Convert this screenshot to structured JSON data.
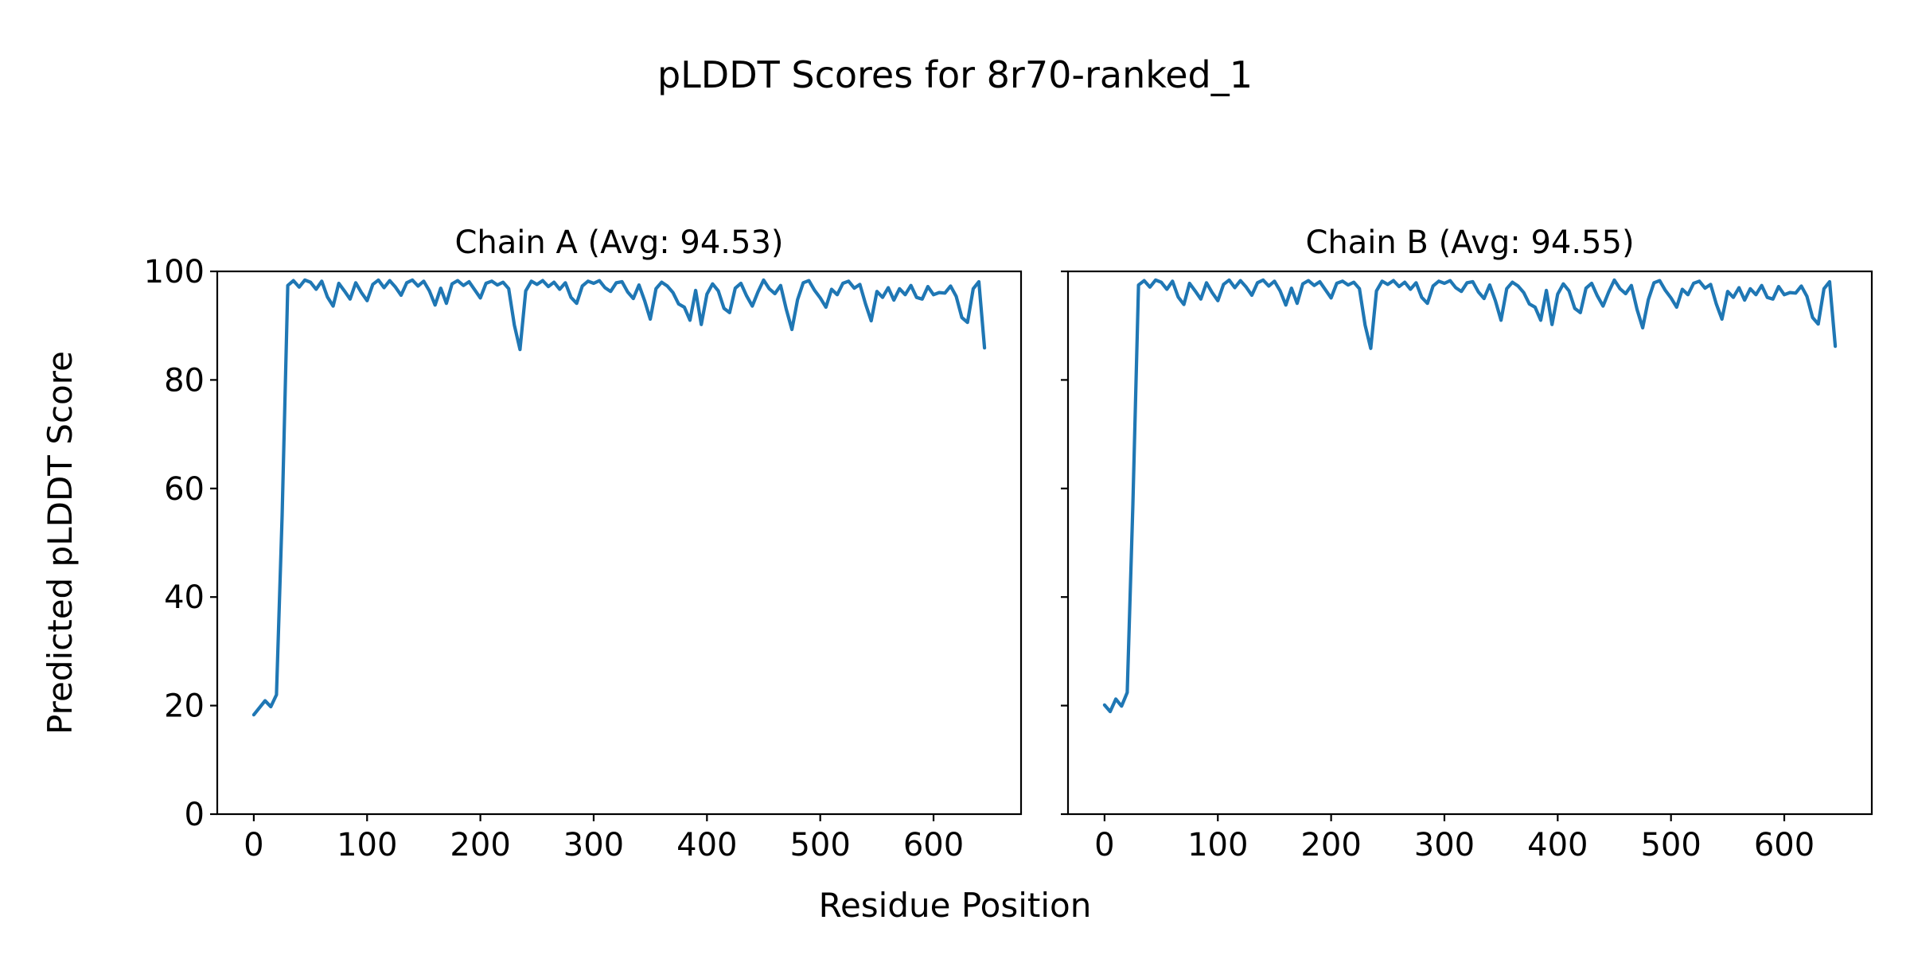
{
  "figure": {
    "title": "pLDDT Scores for 8r70-ranked_1",
    "xlabel": "Residue Position",
    "ylabel": "Predicted pLDDT Score",
    "background_color": "#ffffff",
    "text_color": "#000000",
    "line_color": "#1f77b4",
    "spine_color": "#000000"
  },
  "chart_data": [
    {
      "type": "line",
      "title": "Chain A (Avg: 94.53)",
      "avg_plddt": 94.53,
      "xlabel": "Residue Position",
      "ylabel": "Predicted pLDDT Score",
      "xticks": [
        0,
        100,
        200,
        300,
        400,
        500,
        600
      ],
      "yticks": [
        0,
        20,
        40,
        60,
        80,
        100
      ],
      "xlim": [
        -32.25,
        677.25
      ],
      "ylim": [
        0,
        100
      ],
      "grid": false,
      "legend": "none",
      "y_tick_labels_visible": true,
      "x_start": 0,
      "x_step": 5,
      "values": [
        18.3,
        19.6,
        20.9,
        19.8,
        22.0,
        55.0,
        97.4,
        98.3,
        97.1,
        98.4,
        98.0,
        96.7,
        98.2,
        95.3,
        93.6,
        97.8,
        96.4,
        94.9,
        97.9,
        96.1,
        94.6,
        97.6,
        98.4,
        97.0,
        98.3,
        97.1,
        95.6,
        97.9,
        98.4,
        97.3,
        98.2,
        96.4,
        93.8,
        96.9,
        94.1,
        97.7,
        98.3,
        97.4,
        98.1,
        96.6,
        95.1,
        97.8,
        98.2,
        97.5,
        98.0,
        96.8,
        90.1,
        85.6,
        96.4,
        98.2,
        97.6,
        98.3,
        97.2,
        98.0,
        96.7,
        97.9,
        95.2,
        94.1,
        97.3,
        98.2,
        97.8,
        98.3,
        97.0,
        96.3,
        97.9,
        98.1,
        96.2,
        95.0,
        97.5,
        94.6,
        91.2,
        96.8,
        98.0,
        97.3,
        96.1,
        94.0,
        93.4,
        91.0,
        96.5,
        90.2,
        95.8,
        97.7,
        96.4,
        93.2,
        92.4,
        96.9,
        97.8,
        95.5,
        93.6,
        96.2,
        98.4,
        96.8,
        95.9,
        97.4,
        93.0,
        89.3,
        94.8,
        97.9,
        98.3,
        96.5,
        95.1,
        93.4,
        96.7,
        95.7,
        97.8,
        98.2,
        96.9,
        97.6,
        94.0,
        90.9,
        96.3,
        95.2,
        97.0,
        94.7,
        96.8,
        95.7,
        97.4,
        95.2,
        94.9,
        97.2,
        95.7,
        96.1,
        96.0,
        97.3,
        95.4,
        91.5,
        90.6,
        96.8,
        98.1,
        85.9
      ]
    },
    {
      "type": "line",
      "title": "Chain B (Avg: 94.55)",
      "avg_plddt": 94.55,
      "xlabel": "Residue Position",
      "ylabel": "Predicted pLDDT Score",
      "xticks": [
        0,
        100,
        200,
        300,
        400,
        500,
        600
      ],
      "yticks": [
        0,
        20,
        40,
        60,
        80,
        100
      ],
      "xlim": [
        -32.25,
        677.25
      ],
      "ylim": [
        0,
        100
      ],
      "grid": false,
      "legend": "none",
      "y_tick_labels_visible": false,
      "x_start": 0,
      "x_step": 5,
      "values": [
        20.1,
        18.9,
        21.2,
        19.9,
        22.4,
        57.0,
        97.5,
        98.3,
        97.1,
        98.4,
        98.0,
        96.7,
        98.2,
        95.3,
        93.9,
        97.8,
        96.4,
        94.9,
        97.9,
        96.1,
        94.6,
        97.6,
        98.4,
        97.0,
        98.3,
        97.1,
        95.6,
        97.9,
        98.4,
        97.3,
        98.2,
        96.4,
        93.8,
        96.9,
        94.1,
        97.7,
        98.3,
        97.4,
        98.1,
        96.6,
        95.1,
        97.8,
        98.2,
        97.5,
        98.0,
        96.8,
        90.1,
        85.8,
        96.4,
        98.2,
        97.6,
        98.3,
        97.2,
        98.0,
        96.7,
        97.9,
        95.2,
        94.1,
        97.3,
        98.2,
        97.8,
        98.3,
        97.0,
        96.3,
        97.9,
        98.1,
        96.2,
        95.0,
        97.5,
        94.6,
        91.0,
        96.8,
        98.0,
        97.3,
        96.1,
        94.0,
        93.4,
        91.0,
        96.5,
        90.2,
        95.8,
        97.7,
        96.4,
        93.2,
        92.4,
        96.9,
        97.8,
        95.5,
        93.6,
        96.2,
        98.4,
        96.8,
        95.9,
        97.4,
        93.0,
        89.6,
        94.8,
        97.9,
        98.3,
        96.5,
        95.1,
        93.4,
        96.7,
        95.7,
        97.8,
        98.2,
        96.9,
        97.6,
        94.0,
        91.2,
        96.3,
        95.2,
        97.0,
        94.7,
        96.8,
        95.7,
        97.4,
        95.2,
        94.9,
        97.2,
        95.7,
        96.1,
        96.0,
        97.3,
        95.4,
        91.5,
        90.3,
        96.8,
        98.1,
        86.2
      ]
    }
  ]
}
